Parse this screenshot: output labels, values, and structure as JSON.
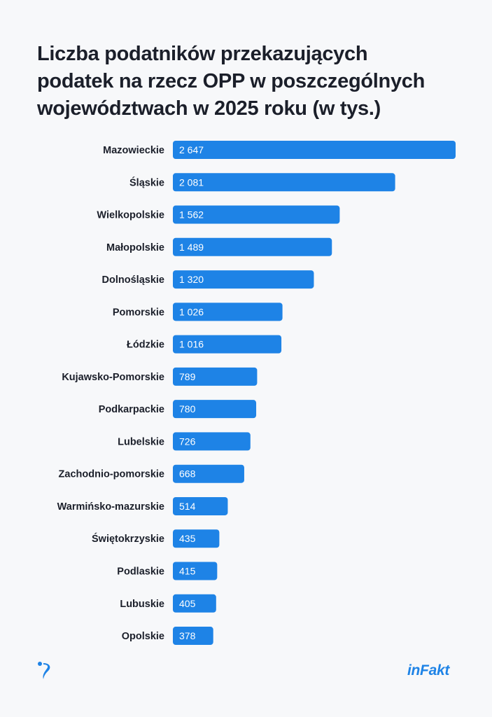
{
  "title_lines": [
    "Liczba podatników przekazujących",
    "podatek na rzecz OPP w poszczególnych",
    "województwach w 2025 roku (w tys.)"
  ],
  "brand": "inFakt",
  "logo_icon": "infakt-swirl-icon",
  "colors": {
    "bar": "#1e83e6",
    "background": "#f7f8fa",
    "text": "#1b1f2a"
  },
  "chart_data": {
    "type": "bar",
    "orientation": "horizontal",
    "title": "Liczba podatników przekazujących podatek na rzecz OPP w poszczególnych województwach w 2025 roku (w tys.)",
    "categories": [
      "Mazowieckie",
      "Śląskie",
      "Wielkopolskie",
      "Małopolskie",
      "Dolnośląskie",
      "Pomorskie",
      "Łódzkie",
      "Kujawsko-Pomorskie",
      "Podkarpackie",
      "Lubelskie",
      "Zachodnio-pomorskie",
      "Warmińsko-mazurskie",
      "Świętokrzyskie",
      "Podlaskie",
      "Lubuskie",
      "Opolskie"
    ],
    "values": [
      2647,
      2081,
      1562,
      1489,
      1320,
      1026,
      1016,
      789,
      780,
      726,
      668,
      514,
      435,
      415,
      405,
      378
    ],
    "value_labels": [
      "2 647",
      "2 081",
      "1 562",
      "1 489",
      "1 320",
      "1 026",
      "1 016",
      "789",
      "780",
      "726",
      "668",
      "514",
      "435",
      "415",
      "405",
      "378"
    ],
    "xlabel": "",
    "ylabel": "",
    "xlim": [
      0,
      2647
    ],
    "grid": false
  }
}
